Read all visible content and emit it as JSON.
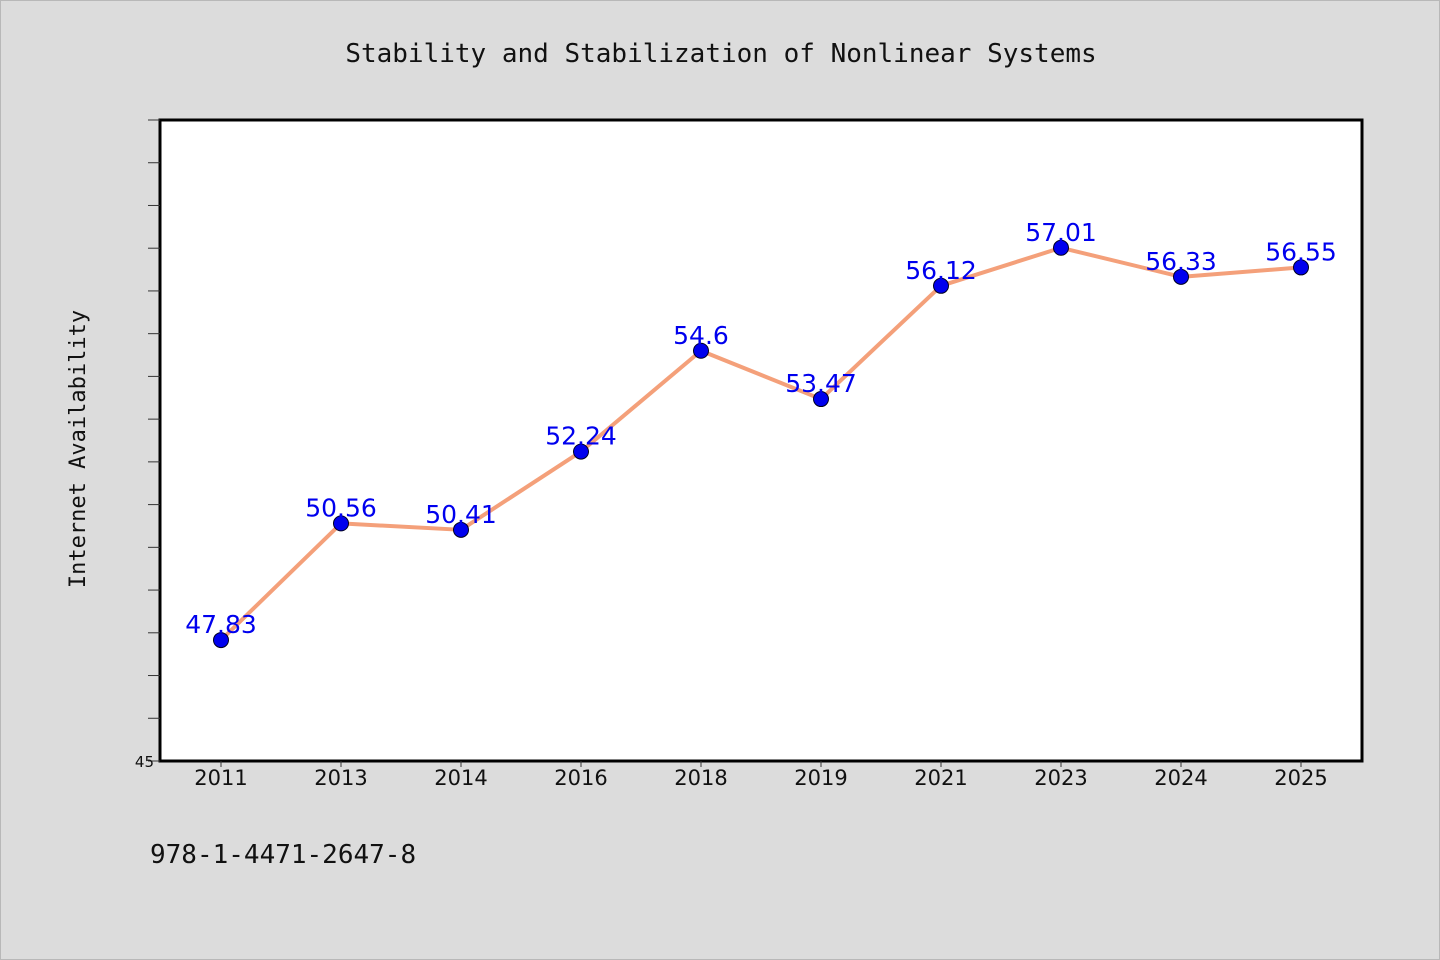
{
  "chart_data": {
    "type": "line",
    "title": "Stability and Stabilization of Nonlinear Systems",
    "xlabel": "",
    "ylabel": "Internet Availability",
    "categories": [
      "2011",
      "2013",
      "2014",
      "2016",
      "2018",
      "2019",
      "2021",
      "2023",
      "2024",
      "2025"
    ],
    "series": [
      {
        "values": [
          47.83,
          50.56,
          50.41,
          52.24,
          54.6,
          53.47,
          56.12,
          57.01,
          56.33,
          56.55
        ],
        "line_color": "#f4a07a",
        "marker_color": "#0000ee"
      }
    ],
    "data_labels": [
      "47.83",
      "50.56",
      "50.41",
      "52.24",
      "54.6",
      "53.47",
      "56.12",
      "57.01",
      "56.33",
      "56.55"
    ],
    "ylim": [
      45,
      60
    ],
    "yticks_labeled": [
      "45"
    ],
    "ytick_step": 1,
    "grid": false,
    "legend": "none"
  },
  "footer": {
    "isbn": "978-1-4471-2647-8"
  },
  "colors": {
    "background": "#dcdcdc",
    "plot_background": "#ffffff",
    "line": "#f4a07a",
    "marker": "#0000ee",
    "data_label": "#0000ee"
  }
}
